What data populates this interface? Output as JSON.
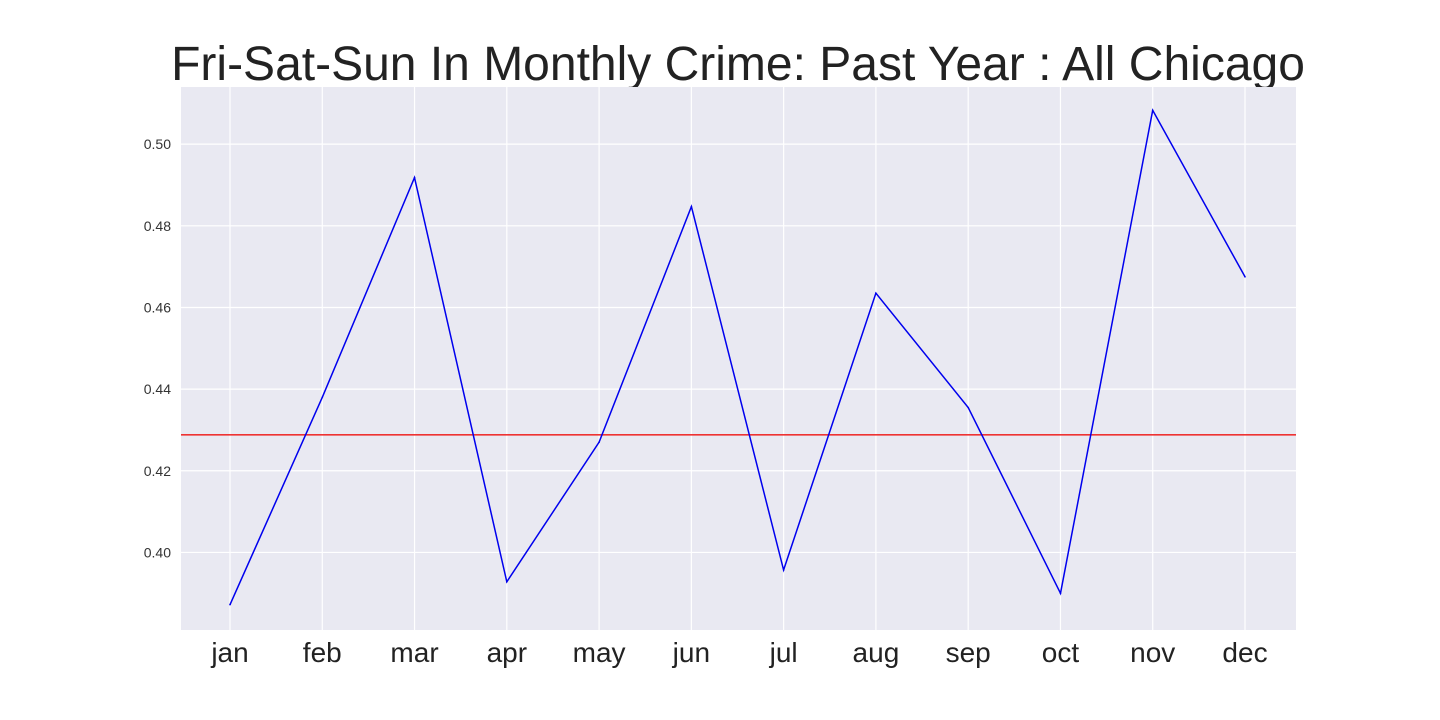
{
  "chart_data": {
    "type": "line",
    "title": "Fri-Sat-Sun In Monthly Crime: Past Year : All Chicago",
    "xlabel": "",
    "ylabel": "",
    "categories": [
      "jan",
      "feb",
      "mar",
      "apr",
      "may",
      "jun",
      "jul",
      "aug",
      "sep",
      "oct",
      "nov",
      "dec"
    ],
    "series": [
      {
        "values": [
          0.3872,
          0.438,
          0.4918,
          0.3928,
          0.427,
          0.4847,
          0.3957,
          0.4635,
          0.4355,
          0.39,
          0.5083,
          0.4675
        ],
        "color": "#0000ee"
      }
    ],
    "reference_line": {
      "value": 0.4288,
      "color": "#ee3333"
    },
    "ylim": [
      0.381,
      0.514
    ],
    "yticks": [
      "0.40",
      "0.42",
      "0.44",
      "0.46",
      "0.48",
      "0.50"
    ],
    "grid": true,
    "background": "#e9e9f2"
  }
}
